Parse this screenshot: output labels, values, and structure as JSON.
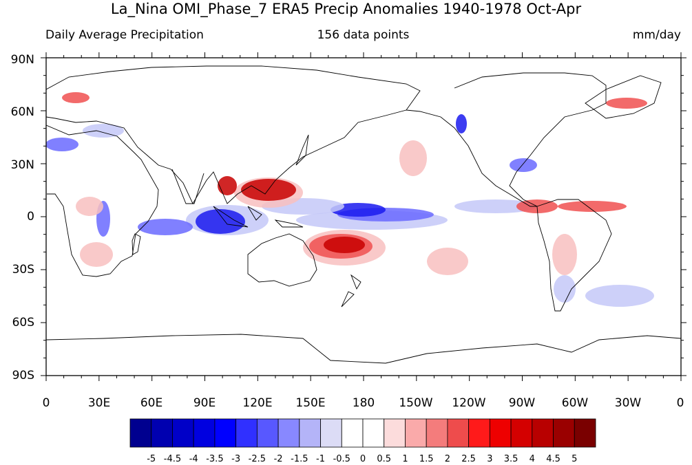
{
  "title": "La_Nina OMI_Phase_7 ERA5 Precip Anomalies 1940-1978 Oct-Apr",
  "left_subtitle": "Daily Average Precipitation",
  "center_subtitle": "156 data points",
  "right_subtitle": "mm/day",
  "lat_ticks": [
    "90N",
    "60N",
    "30N",
    "0",
    "30S",
    "60S",
    "90S"
  ],
  "lon_ticks": [
    "0",
    "30E",
    "60E",
    "90E",
    "120E",
    "150E",
    "180",
    "150W",
    "120W",
    "90W",
    "60W",
    "30W",
    "0"
  ],
  "colorbar": {
    "labels": [
      "-5",
      "-4.5",
      "-4",
      "-3.5",
      "-3",
      "-2.5",
      "-2",
      "-1.5",
      "-1",
      "-0.5",
      "0",
      "0.5",
      "1",
      "1.5",
      "2",
      "2.5",
      "3",
      "3.5",
      "4",
      "4.5",
      "5"
    ],
    "colors": [
      "#00008f",
      "#0000b0",
      "#0000c8",
      "#0000e0",
      "#0000ff",
      "#3030ff",
      "#5858ff",
      "#8888ff",
      "#b4b4f8",
      "#dcdcf6",
      "#ffffff",
      "#ffffff",
      "#fcdcdc",
      "#faaaaa",
      "#f47c7c",
      "#ee4c4c",
      "#ff1a1a",
      "#ee0000",
      "#d40000",
      "#b80000",
      "#9a0000",
      "#7a0000"
    ]
  },
  "map_colors": {
    "strong_blue": "#1a1aee",
    "mid_blue": "#6a6aff",
    "light_blue": "#c4c8f8",
    "strong_red": "#c80000",
    "mid_red": "#f05050",
    "light_red": "#f8c0c0",
    "coast": "#000000"
  }
}
